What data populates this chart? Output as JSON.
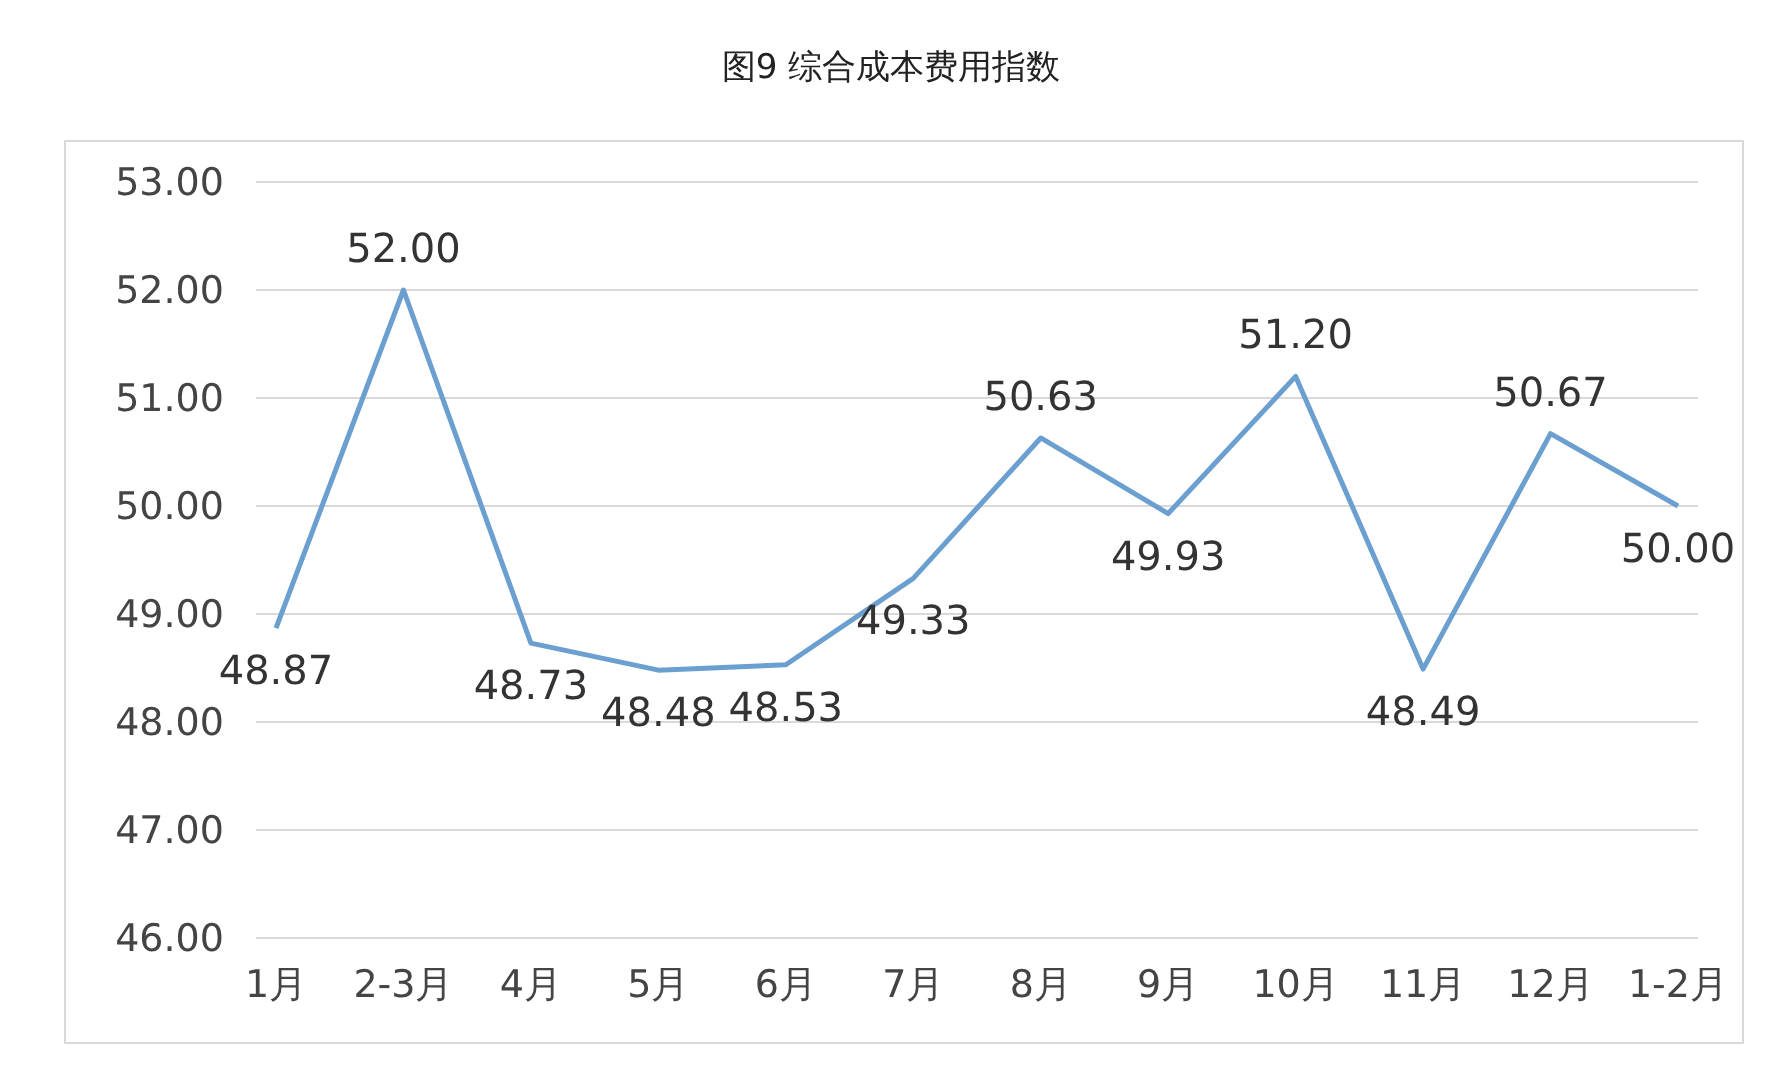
{
  "chart_data": {
    "type": "line",
    "title": "图9 综合成本费用指数",
    "categories": [
      "1月",
      "2-3月",
      "4月",
      "5月",
      "6月",
      "7月",
      "8月",
      "9月",
      "10月",
      "11月",
      "12月",
      "1-2月"
    ],
    "series": [
      {
        "color": "#6a9fd0",
        "values": [
          48.87,
          52.0,
          48.73,
          48.48,
          48.53,
          49.33,
          50.63,
          49.93,
          51.2,
          48.49,
          50.67,
          50.0
        ],
        "value_labels": [
          "48.87",
          "52.00",
          "48.73",
          "48.48",
          "48.53",
          "49.33",
          "50.63",
          "49.93",
          "51.20",
          "48.49",
          "50.67",
          "50.00"
        ]
      }
    ],
    "ylim": [
      46,
      53
    ],
    "yticks": [
      {
        "value": 46,
        "label": "46.00"
      },
      {
        "value": 47,
        "label": "47.00"
      },
      {
        "value": 48,
        "label": "48.00"
      },
      {
        "value": 49,
        "label": "49.00"
      },
      {
        "value": 50,
        "label": "50.00"
      },
      {
        "value": 51,
        "label": "51.00"
      },
      {
        "value": 52,
        "label": "52.00"
      },
      {
        "value": 53,
        "label": "53.00"
      }
    ],
    "grid": "y",
    "legend": false,
    "marker": "none",
    "line_style": "solid"
  }
}
